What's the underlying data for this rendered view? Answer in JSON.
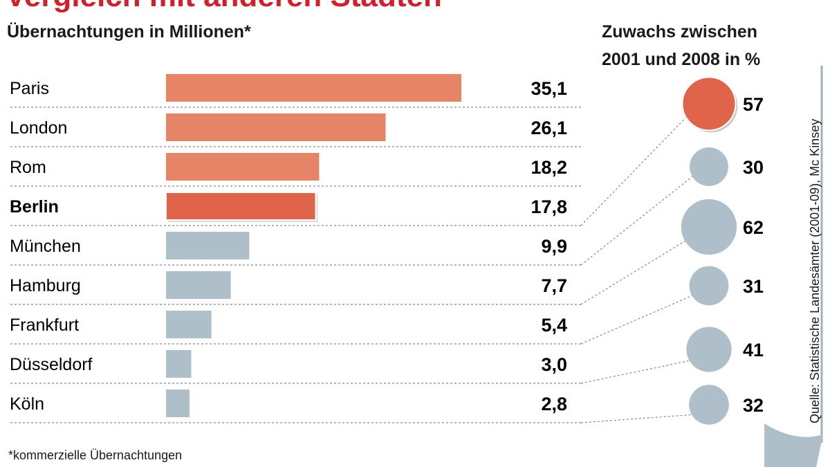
{
  "title": "Vergleich mit anderen Städten",
  "subtitle": "Übernachtungen in Millionen*",
  "growth_title_line1": "Zuwachs zwischen",
  "growth_title_line2": "2001 und 2008 in %",
  "footnote": "*kommerzielle Übernachtungen",
  "source": "Quelle: Statistische Landesämter (2001-09), Mc Kinsey",
  "colors": {
    "highlight": "#e0644a",
    "foreign": "#e58467",
    "german": "#aebfca",
    "title": "#d0202e"
  },
  "chart_data": [
    {
      "type": "bar",
      "orientation": "horizontal",
      "title": "Übernachtungen in Millionen*",
      "categories": [
        "Paris",
        "London",
        "Rom",
        "Berlin",
        "München",
        "Hamburg",
        "Frankfurt",
        "Düsseldorf",
        "Köln"
      ],
      "values": [
        35.1,
        26.1,
        18.2,
        17.8,
        9.9,
        7.7,
        5.4,
        3.0,
        2.8
      ],
      "value_labels": [
        "35,1",
        "26,1",
        "18,2",
        "17,8",
        "9,9",
        "7,7",
        "5,4",
        "3,0",
        "2,8"
      ],
      "highlight": "Berlin"
    },
    {
      "type": "bubble",
      "title": "Zuwachs zwischen 2001 und 2008 in %",
      "categories": [
        "Berlin",
        "München",
        "Hamburg",
        "Frankfurt",
        "Düsseldorf",
        "Köln"
      ],
      "values": [
        57,
        30,
        62,
        31,
        41,
        32
      ],
      "highlight": "Berlin"
    }
  ]
}
